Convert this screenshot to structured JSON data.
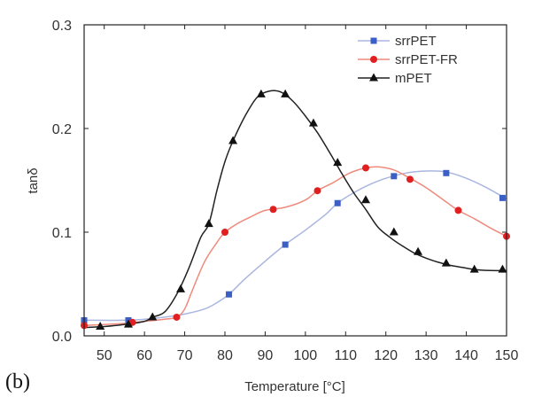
{
  "panel_label": "(b)",
  "chart_data": {
    "type": "line",
    "title": "",
    "xlabel": "Temperature [°C]",
    "ylabel": "tanδ",
    "xlim": [
      45,
      150
    ],
    "ylim": [
      0.0,
      0.3
    ],
    "x_ticks": [
      50,
      60,
      70,
      80,
      90,
      100,
      110,
      120,
      130,
      140,
      150
    ],
    "y_ticks": [
      0.0,
      0.1,
      0.2,
      0.3
    ],
    "y_tick_labels": [
      "0.0",
      "0.1",
      "0.2",
      "0.3"
    ],
    "grid": false,
    "legend_position": "top-right",
    "series": [
      {
        "name": "srrPET",
        "color": "#3b5fc4",
        "line_color": "#a9b6e0",
        "marker": "square",
        "curve": [
          [
            45,
            0.015
          ],
          [
            55,
            0.015
          ],
          [
            60,
            0.016
          ],
          [
            65,
            0.018
          ],
          [
            70,
            0.021
          ],
          [
            75,
            0.026
          ],
          [
            78,
            0.032
          ],
          [
            81,
            0.04
          ],
          [
            85,
            0.055
          ],
          [
            90,
            0.072
          ],
          [
            95,
            0.088
          ],
          [
            100,
            0.102
          ],
          [
            105,
            0.117
          ],
          [
            108,
            0.128
          ],
          [
            112,
            0.138
          ],
          [
            116,
            0.146
          ],
          [
            120,
            0.152
          ],
          [
            125,
            0.157
          ],
          [
            130,
            0.159
          ],
          [
            135,
            0.158
          ],
          [
            140,
            0.152
          ],
          [
            145,
            0.143
          ],
          [
            150,
            0.132
          ]
        ],
        "markers": [
          [
            45,
            0.015
          ],
          [
            56,
            0.015
          ],
          [
            81,
            0.04
          ],
          [
            95,
            0.088
          ],
          [
            108,
            0.128
          ],
          [
            122,
            0.154
          ],
          [
            135,
            0.157
          ],
          [
            149,
            0.133
          ]
        ]
      },
      {
        "name": "srrPET-FR",
        "color": "#e02020",
        "line_color": "#ef8a7c",
        "marker": "circle",
        "curve": [
          [
            45,
            0.01
          ],
          [
            55,
            0.012
          ],
          [
            60,
            0.014
          ],
          [
            65,
            0.016
          ],
          [
            68,
            0.018
          ],
          [
            70,
            0.026
          ],
          [
            72,
            0.045
          ],
          [
            75,
            0.072
          ],
          [
            78,
            0.09
          ],
          [
            80,
            0.1
          ],
          [
            83,
            0.108
          ],
          [
            86,
            0.114
          ],
          [
            90,
            0.121
          ],
          [
            95,
            0.124
          ],
          [
            100,
            0.131
          ],
          [
            103,
            0.14
          ],
          [
            107,
            0.148
          ],
          [
            111,
            0.157
          ],
          [
            115,
            0.162
          ],
          [
            118,
            0.163
          ],
          [
            122,
            0.16
          ],
          [
            126,
            0.152
          ],
          [
            130,
            0.143
          ],
          [
            134,
            0.132
          ],
          [
            138,
            0.121
          ],
          [
            142,
            0.113
          ],
          [
            146,
            0.104
          ],
          [
            150,
            0.096
          ]
        ],
        "markers": [
          [
            45,
            0.01
          ],
          [
            57,
            0.013
          ],
          [
            68,
            0.018
          ],
          [
            80,
            0.1
          ],
          [
            92,
            0.122
          ],
          [
            103,
            0.14
          ],
          [
            115,
            0.162
          ],
          [
            126,
            0.151
          ],
          [
            138,
            0.121
          ],
          [
            150,
            0.096
          ]
        ]
      },
      {
        "name": "mPET",
        "color": "#111111",
        "line_color": "#222222",
        "marker": "triangle",
        "curve": [
          [
            45,
            0.008
          ],
          [
            50,
            0.009
          ],
          [
            55,
            0.011
          ],
          [
            60,
            0.014
          ],
          [
            62,
            0.018
          ],
          [
            65,
            0.023
          ],
          [
            68,
            0.04
          ],
          [
            71,
            0.065
          ],
          [
            74,
            0.095
          ],
          [
            76,
            0.108
          ],
          [
            78,
            0.14
          ],
          [
            80,
            0.168
          ],
          [
            82,
            0.188
          ],
          [
            85,
            0.212
          ],
          [
            88,
            0.23
          ],
          [
            91,
            0.236
          ],
          [
            94,
            0.235
          ],
          [
            97,
            0.226
          ],
          [
            100,
            0.212
          ],
          [
            103,
            0.196
          ],
          [
            106,
            0.177
          ],
          [
            109,
            0.157
          ],
          [
            112,
            0.138
          ],
          [
            115,
            0.122
          ],
          [
            118,
            0.105
          ],
          [
            121,
            0.095
          ],
          [
            124,
            0.087
          ],
          [
            127,
            0.08
          ],
          [
            130,
            0.075
          ],
          [
            133,
            0.071
          ],
          [
            136,
            0.068
          ],
          [
            139,
            0.066
          ],
          [
            142,
            0.064
          ],
          [
            146,
            0.063
          ],
          [
            150,
            0.063
          ]
        ],
        "markers": [
          [
            49,
            0.009
          ],
          [
            56,
            0.011
          ],
          [
            62,
            0.018
          ],
          [
            69,
            0.045
          ],
          [
            76,
            0.108
          ],
          [
            82,
            0.188
          ],
          [
            89,
            0.233
          ],
          [
            95,
            0.233
          ],
          [
            102,
            0.205
          ],
          [
            108,
            0.167
          ],
          [
            115,
            0.131
          ],
          [
            122,
            0.1
          ],
          [
            128,
            0.081
          ],
          [
            135,
            0.07
          ],
          [
            142,
            0.064
          ],
          [
            149,
            0.064
          ]
        ]
      }
    ]
  }
}
